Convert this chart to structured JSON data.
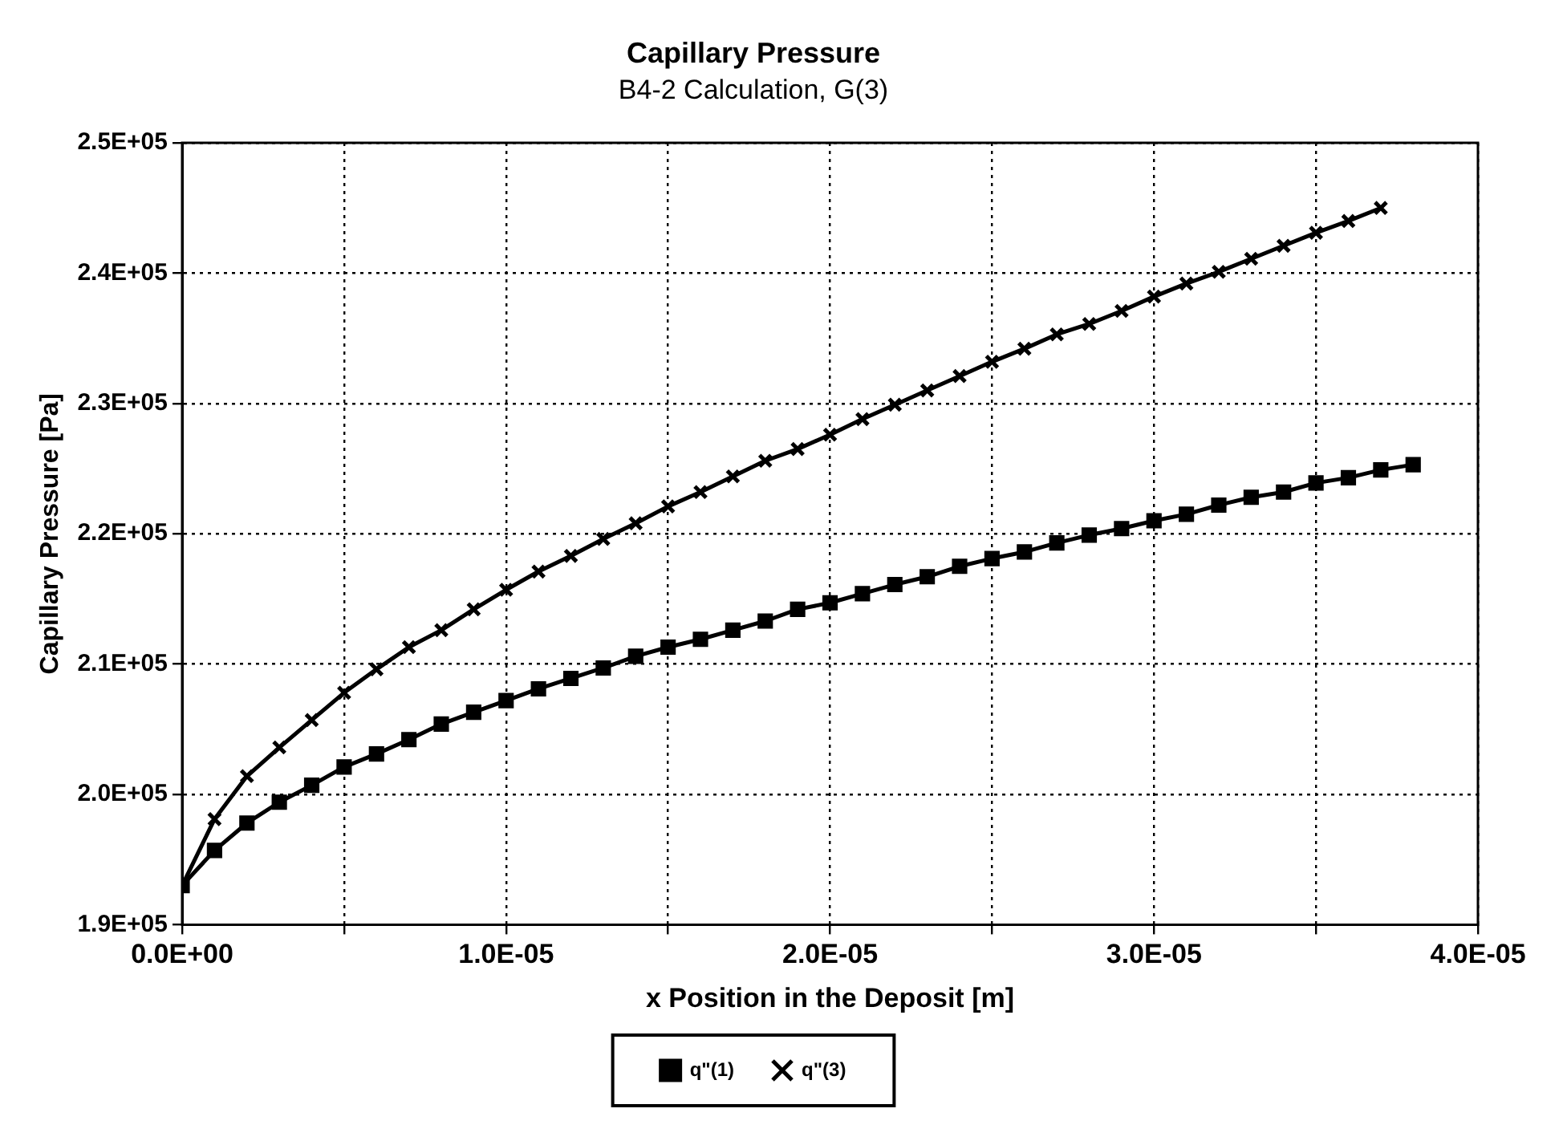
{
  "chart_data": {
    "type": "line",
    "title": "Capillary Pressure",
    "subtitle": "B4-2 Calculation, G(3)",
    "xlabel": "x Position in the Deposit [m]",
    "ylabel": "Capillary Pressure [Pa]",
    "xlim": [
      0,
      4e-05
    ],
    "xticks": [
      {
        "value": 0,
        "label": "0.0E+00"
      },
      {
        "value": 5e-06,
        "label": null
      },
      {
        "value": 1e-05,
        "label": "1.0E-05"
      },
      {
        "value": 1.5e-05,
        "label": null
      },
      {
        "value": 2e-05,
        "label": "2.0E-05"
      },
      {
        "value": 2.5e-05,
        "label": null
      },
      {
        "value": 3e-05,
        "label": "3.0E-05"
      },
      {
        "value": 3.5e-05,
        "label": null
      },
      {
        "value": 4e-05,
        "label": "4.0E-05"
      }
    ],
    "ylim": [
      190000,
      250000
    ],
    "yticks": [
      {
        "value": 190000,
        "label": "1.9E+05"
      },
      {
        "value": 200000,
        "label": "2.0E+05"
      },
      {
        "value": 210000,
        "label": "2.1E+05"
      },
      {
        "value": 220000,
        "label": "2.2E+05"
      },
      {
        "value": 230000,
        "label": "2.3E+05"
      },
      {
        "value": 240000,
        "label": "2.4E+05"
      },
      {
        "value": 250000,
        "label": "2.5E+05"
      }
    ],
    "grid": true,
    "legend": "bottom",
    "line_style": "solid",
    "series": [
      {
        "name": "q\"(1)",
        "color": "#000000",
        "marker": "square",
        "x": [
          0,
          1e-06,
          2e-06,
          3e-06,
          4e-06,
          5e-06,
          6e-06,
          7e-06,
          8e-06,
          9e-06,
          1e-05,
          1.1e-05,
          1.2e-05,
          1.3e-05,
          1.4e-05,
          1.5e-05,
          1.6e-05,
          1.7e-05,
          1.8e-05,
          1.9e-05,
          2e-05,
          2.1e-05,
          2.2e-05,
          2.3e-05,
          2.4e-05,
          2.5e-05,
          2.6e-05,
          2.7e-05,
          2.8e-05,
          2.9e-05,
          3e-05,
          3.1e-05,
          3.2e-05,
          3.3e-05,
          3.4e-05,
          3.5e-05,
          3.6e-05,
          3.7e-05,
          3.8e-05
        ],
        "values": [
          193000,
          195700,
          197800,
          199400,
          200700,
          202100,
          203100,
          204200,
          205400,
          206300,
          207200,
          208100,
          208900,
          209700,
          210600,
          211300,
          211900,
          212600,
          213300,
          214200,
          214700,
          215400,
          216100,
          216700,
          217500,
          218100,
          218600,
          219300,
          219900,
          220400,
          221000,
          221500,
          222200,
          222800,
          223200,
          223900,
          224300,
          224900,
          225300
        ]
      },
      {
        "name": "q\"(3)",
        "color": "#000000",
        "marker": "cross",
        "x": [
          0,
          1e-06,
          2e-06,
          3e-06,
          4e-06,
          5e-06,
          6e-06,
          7e-06,
          8e-06,
          9e-06,
          1e-05,
          1.1e-05,
          1.2e-05,
          1.3e-05,
          1.4e-05,
          1.5e-05,
          1.6e-05,
          1.7e-05,
          1.8e-05,
          1.9e-05,
          2e-05,
          2.1e-05,
          2.2e-05,
          2.3e-05,
          2.4e-05,
          2.5e-05,
          2.6e-05,
          2.7e-05,
          2.8e-05,
          2.9e-05,
          3e-05,
          3.1e-05,
          3.2e-05,
          3.3e-05,
          3.4e-05,
          3.5e-05,
          3.6e-05,
          3.7e-05
        ],
        "values": [
          193000,
          198100,
          201400,
          203600,
          205700,
          207800,
          209600,
          211300,
          212600,
          214200,
          215700,
          217100,
          218300,
          219600,
          220800,
          222100,
          223200,
          224400,
          225600,
          226500,
          227600,
          228800,
          229900,
          231000,
          232100,
          233200,
          234200,
          235300,
          236100,
          237100,
          238200,
          239200,
          240100,
          241100,
          242100,
          243100,
          244000,
          245000
        ]
      }
    ]
  }
}
